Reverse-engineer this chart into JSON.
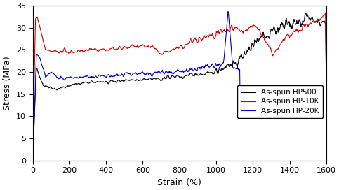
{
  "xlabel": "Strain (%)",
  "ylabel": "Stress (MPa)",
  "xlim": [
    0,
    1600
  ],
  "ylim": [
    0,
    35
  ],
  "xticks": [
    0,
    200,
    400,
    600,
    800,
    1000,
    1200,
    1400,
    1600
  ],
  "yticks": [
    0,
    5,
    10,
    15,
    20,
    25,
    30,
    35
  ],
  "colors": {
    "HP500": "#000000",
    "HP10K": "#cc0000",
    "HP20K": "#0000cc"
  },
  "legend": [
    "As-spun HP500",
    "As-spun HP-10K",
    "As-spun HP-20K"
  ]
}
